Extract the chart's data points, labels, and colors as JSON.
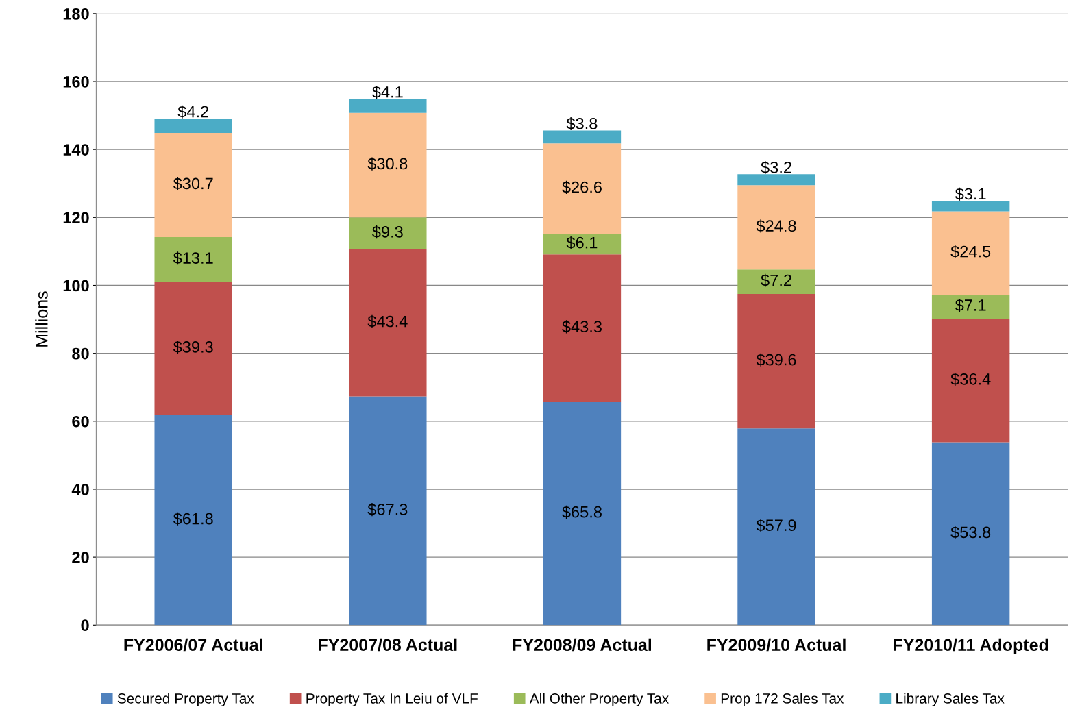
{
  "chart_data": {
    "type": "bar",
    "stacked": true,
    "ylabel": "Millions",
    "categories": [
      "FY2006/07 Actual",
      "FY2007/08 Actual",
      "FY2008/09 Actual",
      "FY2009/10 Actual",
      "FY2010/11 Adopted"
    ],
    "series": [
      {
        "name": "Secured Property Tax",
        "color": "#4f81bd",
        "values": [
          61.8,
          67.3,
          65.8,
          57.9,
          53.8
        ],
        "value_labels": [
          "$61.8",
          "$67.3",
          "$65.8",
          "$57.9",
          "$53.8"
        ]
      },
      {
        "name": "Property Tax In Leiu of VLF",
        "color": "#c0504d",
        "values": [
          39.3,
          43.4,
          43.3,
          39.6,
          36.4
        ],
        "value_labels": [
          "$39.3",
          "$43.4",
          "$43.3",
          "$39.6",
          "$36.4"
        ]
      },
      {
        "name": "All Other Property Tax",
        "color": "#9bbb59",
        "values": [
          13.1,
          9.3,
          6.1,
          7.2,
          7.1
        ],
        "value_labels": [
          "$13.1",
          "$9.3",
          "$6.1",
          "$7.2",
          "$7.1"
        ]
      },
      {
        "name": "Prop 172 Sales Tax",
        "color": "#fac090",
        "values": [
          30.7,
          30.8,
          26.6,
          24.8,
          24.5
        ],
        "value_labels": [
          "$30.7",
          "$30.8",
          "$26.6",
          "$24.8",
          "$24.5"
        ]
      },
      {
        "name": "Library Sales Tax",
        "color": "#4bacc6",
        "values": [
          4.2,
          4.1,
          3.8,
          3.2,
          3.1
        ],
        "value_labels": [
          "$4.2",
          "$4.1",
          "$3.8",
          "$3.2",
          "$3.1"
        ]
      }
    ],
    "ylim": [
      0,
      180
    ],
    "yticks": [
      0,
      20,
      40,
      60,
      80,
      100,
      120,
      140,
      160,
      180
    ],
    "grid": "y",
    "legend": "bottom"
  }
}
